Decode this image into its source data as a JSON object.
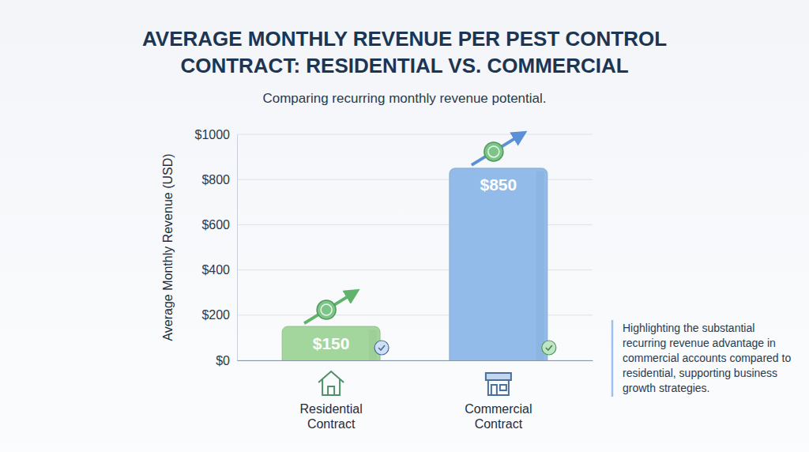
{
  "chart_data": {
    "type": "bar",
    "title": "AVERAGE MONTHLY REVENUE PER PEST CONTROL CONTRACT: RESIDENTIAL VS. COMMERCIAL",
    "subtitle": "Comparing recurring monthly revenue potential.",
    "y_label": "Average Monthly Revenue (USD)",
    "categories": [
      "Residential Contract",
      "Commercial Contract"
    ],
    "values": [
      150,
      850
    ],
    "value_labels": [
      "$150",
      "$850"
    ],
    "colors": [
      "#a3d69c",
      "#92bbe9"
    ],
    "ylim": [
      0,
      1000
    ],
    "yticks": [
      {
        "value": 0,
        "label": "$0"
      },
      {
        "value": 200,
        "label": "$200"
      },
      {
        "value": 400,
        "label": "$400"
      },
      {
        "value": 600,
        "label": "$600"
      },
      {
        "value": 800,
        "label": "$800"
      },
      {
        "value": 1000,
        "label": "$1000"
      }
    ],
    "grid": true,
    "data_labels": true,
    "annotations": [
      "Highlighting the substantial recurring revenue advantage in commercial accounts compared to residential, supporting business growth strategies."
    ]
  }
}
